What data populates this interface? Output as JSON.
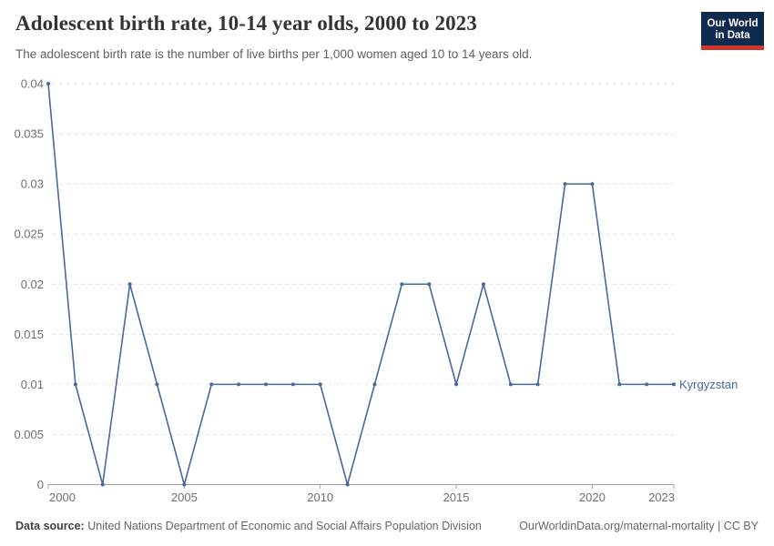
{
  "header": {
    "title": "Adolescent birth rate, 10-14 year olds, 2000 to 2023",
    "subtitle": "The adolescent birth rate is the number of live births per 1,000 women aged 10 to 14 years old.",
    "logo": {
      "line1": "Our World",
      "line2": "in Data",
      "bg_color": "#0f2a4f",
      "bar_color": "#d0342c"
    }
  },
  "chart_data": {
    "type": "line",
    "title": "Adolescent birth rate, 10-14 year olds, 2000 to 2023",
    "xlabel": "",
    "ylabel": "",
    "xlim": [
      2000,
      2023
    ],
    "ylim": [
      0,
      0.04
    ],
    "xticks": [
      2000,
      2005,
      2010,
      2015,
      2020,
      2023
    ],
    "yticks": [
      0,
      0.005,
      0.01,
      0.015,
      0.02,
      0.025,
      0.03,
      0.035,
      0.04
    ],
    "grid": "horizontal-dashed",
    "legend": "inline-end-label",
    "axis_color": "#a3a3a3",
    "grid_color": "#e2e2e2",
    "series": [
      {
        "name": "Kyrgyzstan",
        "color": "#4668a2",
        "x": [
          2000,
          2001,
          2002,
          2003,
          2004,
          2005,
          2006,
          2007,
          2008,
          2009,
          2010,
          2011,
          2012,
          2013,
          2014,
          2015,
          2016,
          2017,
          2018,
          2019,
          2020,
          2021,
          2022,
          2023
        ],
        "values": [
          0.04,
          0.01,
          0,
          0.02,
          0.01,
          0,
          0.01,
          0.01,
          0.01,
          0.01,
          0.01,
          0,
          0.01,
          0.02,
          0.02,
          0.01,
          0.02,
          0.01,
          0.01,
          0.03,
          0.03,
          0.01,
          0.01,
          0.01
        ]
      }
    ]
  },
  "footer": {
    "source_label": "Data source:",
    "source_text": "United Nations Department of Economic and Social Affairs Population Division",
    "credit": "OurWorldinData.org/maternal-mortality | CC BY"
  }
}
